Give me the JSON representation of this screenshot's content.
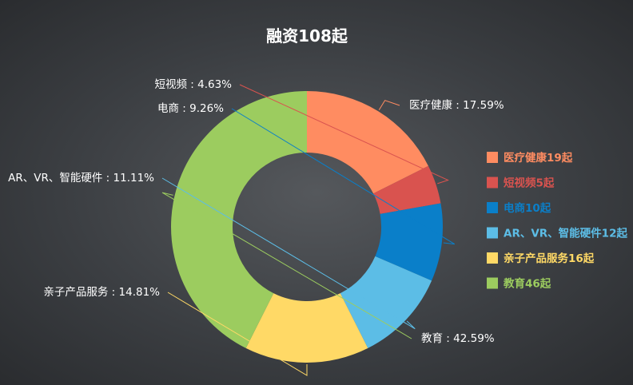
{
  "chart_data": {
    "type": "pie",
    "variant": "donut",
    "title": "融资108起",
    "total": 108,
    "slices": [
      {
        "name": "医疗健康",
        "count": 19,
        "percent": 17.59,
        "label": "医疗健康 : 17.59%",
        "legend": "医疗健康19起",
        "color": "#ff8c61"
      },
      {
        "name": "短视频",
        "count": 5,
        "percent": 4.63,
        "label": "短视频 : 4.63%",
        "legend": "短视频5起",
        "color": "#d9534f"
      },
      {
        "name": "电商",
        "count": 10,
        "percent": 9.26,
        "label": "电商 : 9.26%",
        "legend": "电商10起",
        "color": "#0a7fc9"
      },
      {
        "name": "AR、VR、智能硬件",
        "count": 12,
        "percent": 11.11,
        "label": "AR、VR、智能硬件 : 11.11%",
        "legend": "AR、VR、智能硬件12起",
        "color": "#5cbde6"
      },
      {
        "name": "亲子产品服务",
        "count": 16,
        "percent": 14.81,
        "label": "亲子产品服务 : 14.81%",
        "legend": "亲子产品服务16起",
        "color": "#ffd966"
      },
      {
        "name": "教育",
        "count": 46,
        "percent": 42.59,
        "label": "教育 : 42.59%",
        "legend": "教育46起",
        "color": "#9ccc5f"
      }
    ],
    "legend_position": "right",
    "direction": "clockwise",
    "start": "12 o'clock"
  }
}
